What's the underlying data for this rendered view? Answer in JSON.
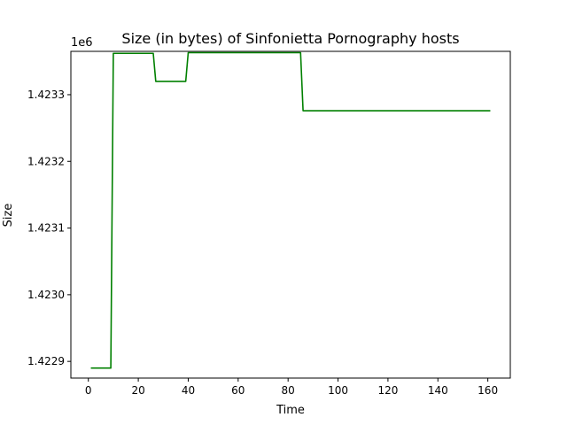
{
  "chart_data": {
    "type": "line",
    "title": "Size (in bytes) of Sinfonietta Pornography hosts",
    "xlabel": "Time",
    "ylabel": "Size",
    "y_offset_label": "1e6",
    "xlim": [
      -7,
      169
    ],
    "ylim": [
      1422875,
      1423365
    ],
    "x_ticks": [
      0,
      20,
      40,
      60,
      80,
      100,
      120,
      140,
      160
    ],
    "x_tick_labels": [
      "0",
      "20",
      "40",
      "60",
      "80",
      "100",
      "120",
      "140",
      "160"
    ],
    "y_ticks": [
      1422900,
      1423000,
      1423100,
      1423200,
      1423300
    ],
    "y_tick_labels": [
      "1.4229",
      "1.4230",
      "1.4231",
      "1.4232",
      "1.4233"
    ],
    "grid": false,
    "series": [
      {
        "color": "#008000",
        "points": [
          [
            1,
            1422890
          ],
          [
            9,
            1422890
          ],
          [
            10,
            1423362
          ],
          [
            26,
            1423362
          ],
          [
            27,
            1423320
          ],
          [
            39,
            1423320
          ],
          [
            40,
            1423363
          ],
          [
            85,
            1423363
          ],
          [
            86,
            1423276
          ],
          [
            161,
            1423276
          ]
        ]
      }
    ]
  }
}
